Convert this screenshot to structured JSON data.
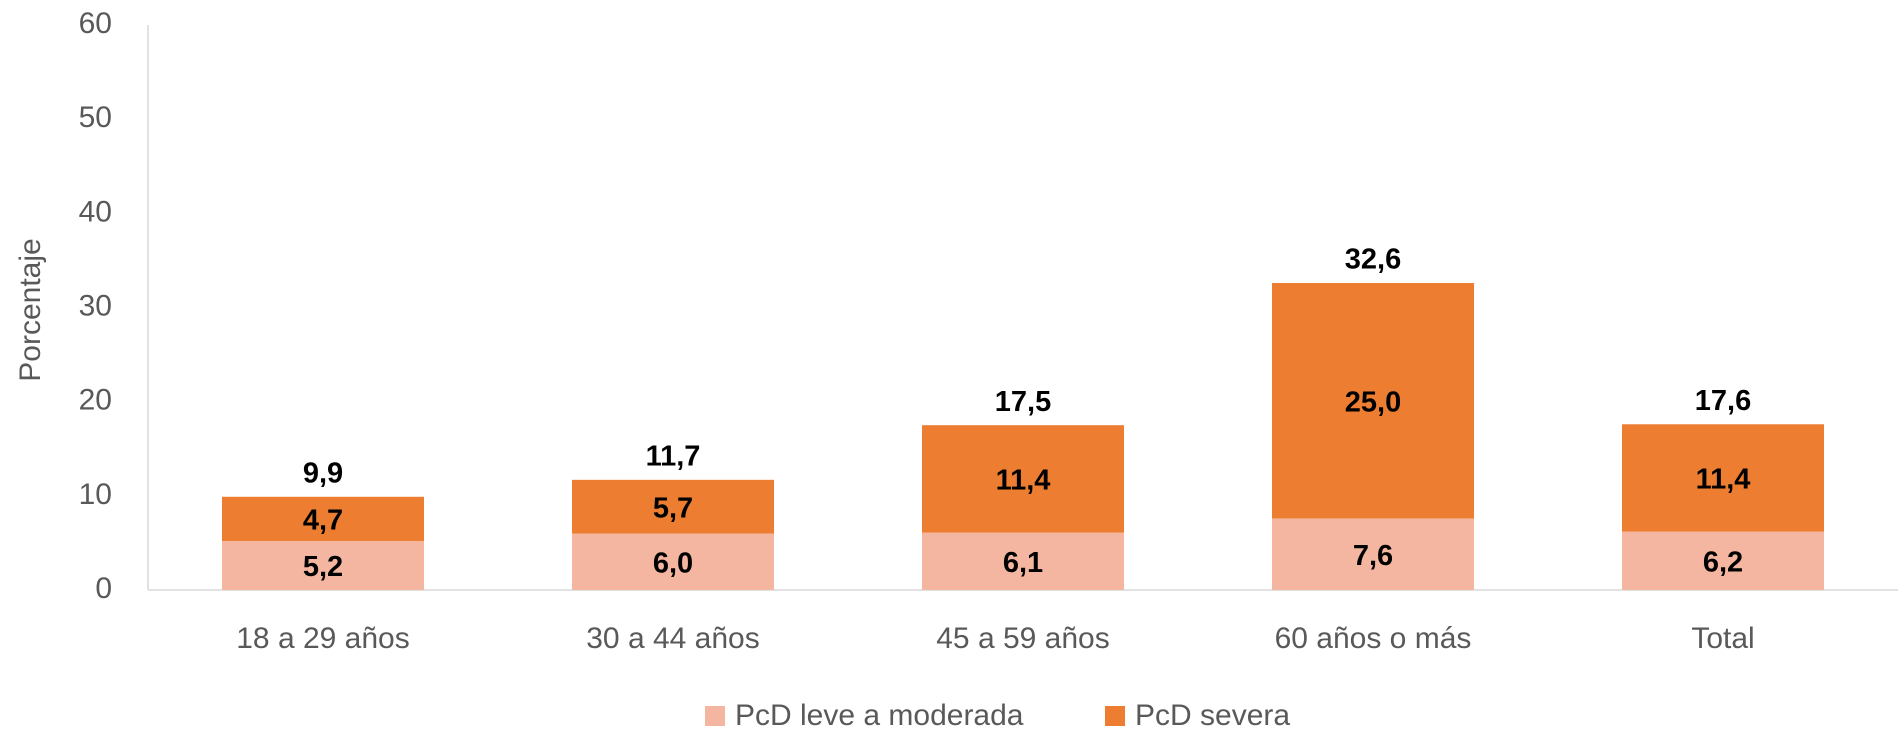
{
  "chart_data": {
    "type": "stacked-bar",
    "y_label": "Porcentaje",
    "categories": [
      "18 a 29 años",
      "30 a 44 años",
      "45 a 59 años",
      "60 años o más",
      "Total"
    ],
    "series": [
      {
        "name": "PcD leve a moderada",
        "color": "#f4b6a0",
        "values": [
          5.2,
          6.0,
          6.1,
          7.6,
          6.2
        ],
        "value_labels": [
          "5,2",
          "6,0",
          "6,1",
          "7,6",
          "6,2"
        ]
      },
      {
        "name": "PcD severa",
        "color": "#ed7d31",
        "values": [
          4.7,
          5.7,
          11.4,
          25.0,
          11.4
        ],
        "value_labels": [
          "4,7",
          "5,7",
          "11,4",
          "25,0",
          "11,4"
        ]
      }
    ],
    "totals": [
      9.9,
      11.7,
      17.5,
      32.6,
      17.6
    ],
    "total_labels": [
      "9,9",
      "11,7",
      "17,5",
      "32,6",
      "17,6"
    ],
    "ylim": [
      0,
      60
    ],
    "yticks": [
      0,
      10,
      20,
      30,
      40,
      50,
      60
    ],
    "grid": false,
    "legend": "bottom"
  }
}
